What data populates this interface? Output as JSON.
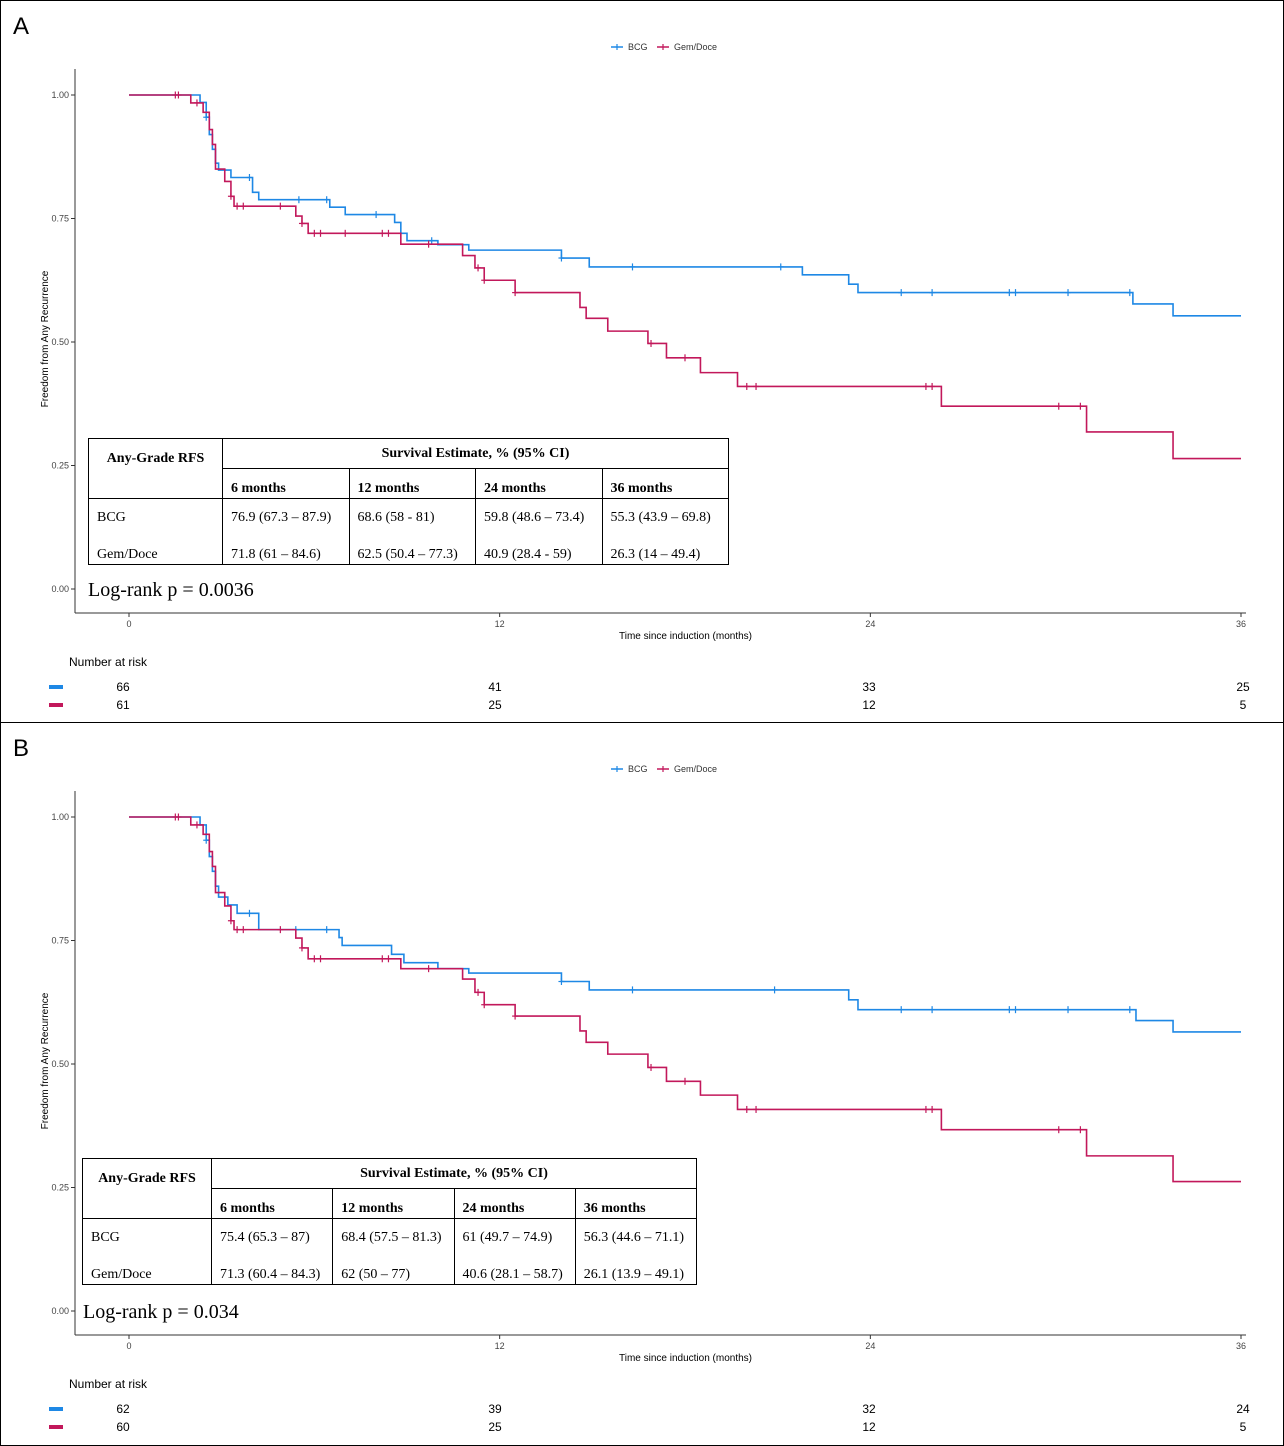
{
  "colors": {
    "bcg": "#1E88E5",
    "gemdoce": "#C2185B"
  },
  "panels": [
    {
      "letter": "A",
      "legend": [
        "BCG",
        "Gem/Doce"
      ],
      "ylabel": "Freedom from Any Recurrence",
      "xlabel": "Time since induction (months)",
      "yticks": [
        "0.00",
        "0.25",
        "0.50",
        "0.75",
        "1.00"
      ],
      "xticks": [
        "0",
        "12",
        "24",
        "36"
      ],
      "risk_title": "Number at risk",
      "risk": [
        {
          "series": "BCG",
          "values": [
            "66",
            "41",
            "33",
            "25"
          ]
        },
        {
          "series": "Gem/Doce",
          "values": [
            "61",
            "25",
            "12",
            "5"
          ]
        }
      ],
      "table": {
        "title": "Any-Grade RFS",
        "span": "Survival Estimate, % (95% CI)",
        "cols": [
          "6 months",
          "12 months",
          "24 months",
          "36 months"
        ],
        "rows": [
          {
            "label": "BCG",
            "cells": [
              "76.9 (67.3 – 87.9)",
              "68.6 (58 - 81)",
              "59.8 (48.6 – 73.4)",
              "55.3 (43.9 – 69.8)"
            ]
          },
          {
            "label": "Gem/Doce",
            "cells": [
              "71.8 (61 – 84.6)",
              "62.5 (50.4 – 77.3)",
              "40.9 (28.4 - 59)",
              "26.3 (14 – 49.4)"
            ]
          }
        ]
      },
      "logrank": "Log-rank  p = 0.0036"
    },
    {
      "letter": "B",
      "legend": [
        "BCG",
        "Gem/Doce"
      ],
      "ylabel": "Freedom from Any Recurrence",
      "xlabel": "Time since induction (months)",
      "yticks": [
        "0.00",
        "0.25",
        "0.50",
        "0.75",
        "1.00"
      ],
      "xticks": [
        "0",
        "12",
        "24",
        "36"
      ],
      "risk_title": "Number at risk",
      "risk": [
        {
          "series": "BCG",
          "values": [
            "62",
            "39",
            "32",
            "24"
          ]
        },
        {
          "series": "Gem/Doce",
          "values": [
            "60",
            "25",
            "12",
            "5"
          ]
        }
      ],
      "table": {
        "title": "Any-Grade RFS",
        "span": "Survival Estimate, % (95% CI)",
        "cols": [
          "6 months",
          "12 months",
          "24 months",
          "36 months"
        ],
        "rows": [
          {
            "label": "BCG",
            "cells": [
              "75.4 (65.3 – 87)",
              "68.4 (57.5 – 81.3)",
              "61 (49.7 – 74.9)",
              "56.3 (44.6 – 71.1)"
            ]
          },
          {
            "label": "Gem/Doce",
            "cells": [
              "71.3 (60.4 – 84.3)",
              "62 (50 – 77)",
              "40.6 (28.1 – 58.7)",
              "26.1 (13.9 – 49.1)"
            ]
          }
        ]
      },
      "logrank": "Log-rank  p = 0.034"
    }
  ],
  "chart_data": [
    {
      "type": "line",
      "step": true,
      "xlabel": "Time since induction (months)",
      "ylabel": "Freedom from Any Recurrence",
      "xlim": [
        0,
        36
      ],
      "ylim": [
        0,
        1
      ],
      "legend_position": "top",
      "grid": false,
      "series": [
        {
          "name": "BCG",
          "steps": [
            [
              0,
              1.0
            ],
            [
              2.3,
              0.985
            ],
            [
              2.5,
              0.955
            ],
            [
              2.6,
              0.92
            ],
            [
              2.7,
              0.89
            ],
            [
              2.8,
              0.862
            ],
            [
              2.9,
              0.848
            ],
            [
              3.3,
              0.833
            ],
            [
              4.0,
              0.803
            ],
            [
              4.2,
              0.788
            ],
            [
              6.5,
              0.773
            ],
            [
              7.0,
              0.758
            ],
            [
              8.6,
              0.742
            ],
            [
              8.8,
              0.72
            ],
            [
              9.0,
              0.705
            ],
            [
              10.0,
              0.697
            ],
            [
              11.0,
              0.686
            ],
            [
              14.0,
              0.67
            ],
            [
              14.9,
              0.652
            ],
            [
              21.8,
              0.636
            ],
            [
              23.3,
              0.617
            ],
            [
              23.6,
              0.6
            ],
            [
              32.5,
              0.577
            ],
            [
              33.8,
              0.553
            ]
          ],
          "end": 36,
          "censor_x": [
            2.5,
            3.9,
            5.5,
            6.4,
            8.0,
            9.8,
            14.0,
            16.3,
            21.1,
            25.0,
            26.0,
            28.5,
            28.7,
            30.4,
            32.4
          ]
        },
        {
          "name": "Gem/Doce",
          "steps": [
            [
              0,
              1.0
            ],
            [
              2.0,
              0.984
            ],
            [
              2.4,
              0.965
            ],
            [
              2.6,
              0.93
            ],
            [
              2.7,
              0.9
            ],
            [
              2.8,
              0.85
            ],
            [
              3.1,
              0.825
            ],
            [
              3.3,
              0.795
            ],
            [
              3.4,
              0.775
            ],
            [
              5.4,
              0.755
            ],
            [
              5.6,
              0.74
            ],
            [
              5.8,
              0.72
            ],
            [
              8.8,
              0.698
            ],
            [
              10.8,
              0.675
            ],
            [
              11.2,
              0.65
            ],
            [
              11.5,
              0.625
            ],
            [
              12.5,
              0.6
            ],
            [
              14.6,
              0.57
            ],
            [
              14.8,
              0.548
            ],
            [
              15.5,
              0.522
            ],
            [
              16.8,
              0.497
            ],
            [
              17.4,
              0.468
            ],
            [
              18.5,
              0.438
            ],
            [
              19.7,
              0.41
            ],
            [
              26.3,
              0.37
            ],
            [
              31.0,
              0.318
            ],
            [
              33.8,
              0.264
            ]
          ],
          "end": 36,
          "censor_x": [
            1.5,
            1.6,
            2.2,
            3.3,
            3.5,
            3.7,
            4.9,
            5.6,
            6.0,
            6.2,
            7.0,
            8.2,
            8.4,
            9.7,
            11.3,
            11.5,
            12.5,
            16.9,
            18.0,
            20.0,
            20.3,
            25.8,
            26.0,
            30.1,
            30.8
          ]
        }
      ],
      "risk_table": {
        "times": [
          0,
          12,
          24,
          36
        ],
        "BCG": [
          66,
          41,
          33,
          25
        ],
        "Gem/Doce": [
          61,
          25,
          12,
          5
        ]
      }
    },
    {
      "type": "line",
      "step": true,
      "xlabel": "Time since induction (months)",
      "ylabel": "Freedom from Any Recurrence",
      "xlim": [
        0,
        36
      ],
      "ylim": [
        0,
        1
      ],
      "legend_position": "top",
      "grid": false,
      "series": [
        {
          "name": "BCG",
          "steps": [
            [
              0,
              1.0
            ],
            [
              2.3,
              0.984
            ],
            [
              2.5,
              0.953
            ],
            [
              2.6,
              0.92
            ],
            [
              2.7,
              0.89
            ],
            [
              2.8,
              0.86
            ],
            [
              2.9,
              0.838
            ],
            [
              3.2,
              0.822
            ],
            [
              3.5,
              0.805
            ],
            [
              4.2,
              0.772
            ],
            [
              6.8,
              0.756
            ],
            [
              6.9,
              0.752
            ],
            [
              6.9,
              0.74
            ],
            [
              8.5,
              0.722
            ],
            [
              8.9,
              0.705
            ],
            [
              10.0,
              0.693
            ],
            [
              11.0,
              0.684
            ],
            [
              14.0,
              0.667
            ],
            [
              14.9,
              0.65
            ],
            [
              23.3,
              0.63
            ],
            [
              23.6,
              0.61
            ],
            [
              32.6,
              0.588
            ],
            [
              33.8,
              0.565
            ]
          ],
          "end": 36,
          "censor_x": [
            2.5,
            3.9,
            5.4,
            6.4,
            14.0,
            16.3,
            20.9,
            25.0,
            26.0,
            28.5,
            28.7,
            30.4,
            32.4
          ]
        },
        {
          "name": "Gem/Doce",
          "steps": [
            [
              0,
              1.0
            ],
            [
              2.0,
              0.984
            ],
            [
              2.4,
              0.965
            ],
            [
              2.6,
              0.93
            ],
            [
              2.7,
              0.9
            ],
            [
              2.8,
              0.847
            ],
            [
              3.1,
              0.82
            ],
            [
              3.3,
              0.79
            ],
            [
              3.4,
              0.772
            ],
            [
              5.4,
              0.755
            ],
            [
              5.6,
              0.735
            ],
            [
              5.8,
              0.713
            ],
            [
              8.8,
              0.693
            ],
            [
              10.8,
              0.672
            ],
            [
              11.2,
              0.645
            ],
            [
              11.5,
              0.62
            ],
            [
              12.5,
              0.597
            ],
            [
              14.6,
              0.567
            ],
            [
              14.8,
              0.544
            ],
            [
              15.5,
              0.52
            ],
            [
              16.8,
              0.493
            ],
            [
              17.4,
              0.465
            ],
            [
              18.5,
              0.437
            ],
            [
              19.7,
              0.408
            ],
            [
              26.3,
              0.367
            ],
            [
              31.0,
              0.314
            ],
            [
              33.8,
              0.262
            ]
          ],
          "end": 36,
          "censor_x": [
            1.5,
            1.6,
            2.2,
            3.3,
            3.5,
            3.7,
            4.9,
            5.6,
            6.0,
            6.2,
            8.2,
            8.4,
            9.7,
            11.3,
            11.5,
            12.5,
            16.9,
            18.0,
            20.0,
            20.3,
            25.8,
            26.0,
            30.1,
            30.8
          ]
        }
      ],
      "risk_table": {
        "times": [
          0,
          12,
          24,
          36
        ],
        "BCG": [
          62,
          39,
          32,
          24
        ],
        "Gem/Doce": [
          60,
          25,
          12,
          5
        ]
      }
    }
  ]
}
